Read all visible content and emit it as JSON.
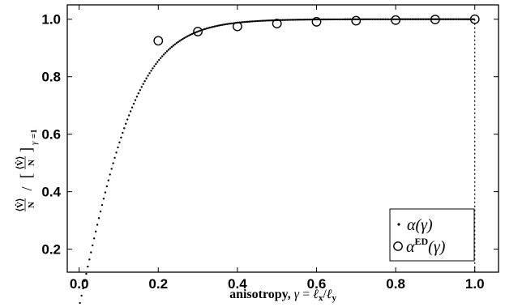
{
  "chart_data": {
    "type": "scatter",
    "xlabel": "anisotropy, γ = ℓx/ℓy",
    "ylabel": "⟨V̂⟩/N / [⟨V̂⟩/N]γ=1",
    "xlim": [
      -0.03,
      1.06
    ],
    "ylim": [
      0.12,
      1.05
    ],
    "xticks": [
      "0.0",
      "0.2",
      "0.4",
      "0.6",
      "0.8",
      "1.0"
    ],
    "yticks": [
      "0.2",
      "0.4",
      "0.6",
      "0.8",
      "1.0"
    ],
    "legend_placement": "bottom-right",
    "series": [
      {
        "name": "α(γ)",
        "marker": "dot",
        "function": "tanh(6.37·γ)",
        "x_range": [
          0.0,
          1.0
        ]
      },
      {
        "name": "αED(γ)",
        "marker": "open-circle",
        "x": [
          0.2,
          0.3,
          0.4,
          0.5,
          0.6,
          0.7,
          0.8,
          0.9,
          1.0
        ],
        "y": [
          0.925,
          0.957,
          0.975,
          0.985,
          0.991,
          0.995,
          0.997,
          0.999,
          1.0
        ]
      }
    ],
    "vertical_line": {
      "x": 1.0,
      "style": "dotted"
    },
    "grid": false
  }
}
